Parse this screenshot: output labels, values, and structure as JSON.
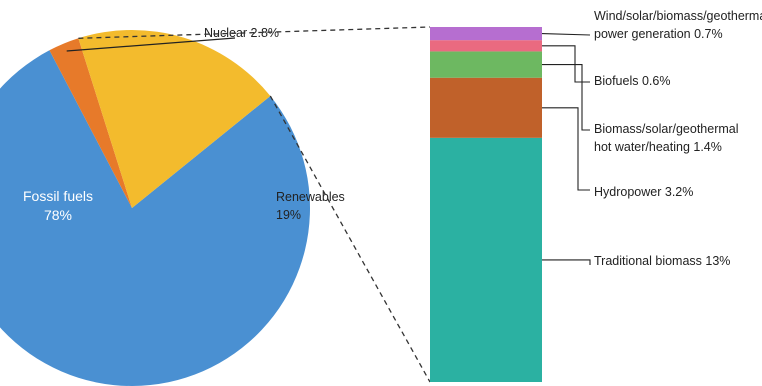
{
  "chart_data": [
    {
      "type": "pie",
      "slices": [
        {
          "label": "Fossil fuels",
          "value_text": "78%",
          "value": 78,
          "color": "#4a90d2"
        },
        {
          "label": "Nuclear",
          "value_text": "2.8%",
          "value": 2.8,
          "color": "#e77a2a"
        },
        {
          "label": "Renewables",
          "value_text": "19%",
          "value": 19,
          "color": "#f3bb2d"
        }
      ]
    },
    {
      "type": "bar",
      "stacked": true,
      "segments": [
        {
          "label": "Traditional biomass 13%",
          "value": 13,
          "color": "#2bb1a2"
        },
        {
          "label": "Hydropower 3.2%",
          "value": 3.2,
          "color": "#c0612a"
        },
        {
          "label_lines": [
            "Biomass/solar/geothermal",
            "hot water/heating 1.4%"
          ],
          "value": 1.4,
          "color": "#6db861"
        },
        {
          "label": "Biofuels 0.6%",
          "value": 0.6,
          "color": "#ea6a80"
        },
        {
          "label_lines": [
            "Wind/solar/biomass/geothermal",
            "power generation 0.7%"
          ],
          "value": 0.7,
          "color": "#b66ed0"
        }
      ]
    }
  ]
}
